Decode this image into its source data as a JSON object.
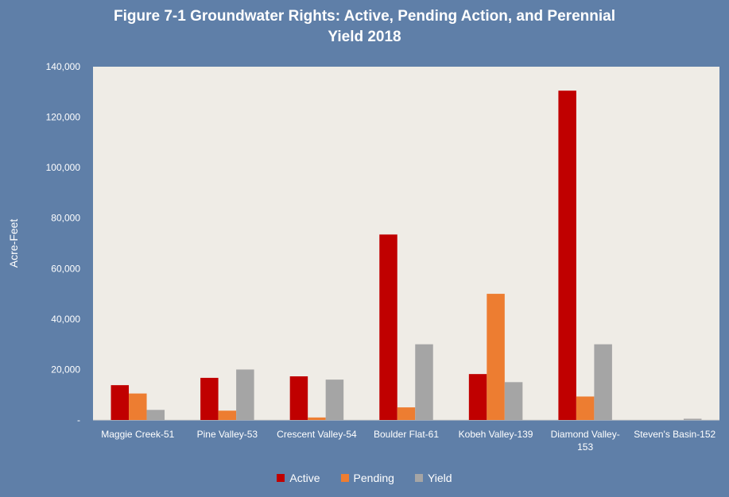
{
  "chart_data": {
    "type": "bar",
    "title_lines": [
      "Figure 7-1 Groundwater Rights: Active, Pending Action, and Perennial",
      "Yield 2018"
    ],
    "xlabel": "",
    "ylabel": "Acre-Feet",
    "ylim": [
      0,
      140000
    ],
    "y_ticks": [
      0,
      20000,
      40000,
      60000,
      80000,
      100000,
      120000,
      140000
    ],
    "y_tick_labels": [
      "-",
      "20,000",
      "40,000",
      "60,000",
      "80,000",
      "100,000",
      "120,000",
      "140,000"
    ],
    "categories": [
      [
        "Maggie Creek-51"
      ],
      [
        "Pine Valley-53"
      ],
      [
        "Crescent Valley-54"
      ],
      [
        "Boulder Flat-61"
      ],
      [
        "Kobeh Valley-139"
      ],
      [
        "Diamond Valley-",
        "153"
      ],
      [
        "Steven's Basin-152"
      ]
    ],
    "series": [
      {
        "name": "Active",
        "color": "#c00000",
        "values": [
          13800,
          16700,
          17300,
          73500,
          18200,
          130500,
          0
        ]
      },
      {
        "name": "Pending",
        "color": "#ed7d31",
        "values": [
          10500,
          3700,
          1000,
          5000,
          50000,
          9300,
          0
        ]
      },
      {
        "name": "Yield",
        "color": "#a5a5a5",
        "values": [
          4000,
          20000,
          16000,
          30000,
          15000,
          30000,
          500
        ]
      }
    ],
    "grid": false,
    "legend_position": "bottom"
  }
}
